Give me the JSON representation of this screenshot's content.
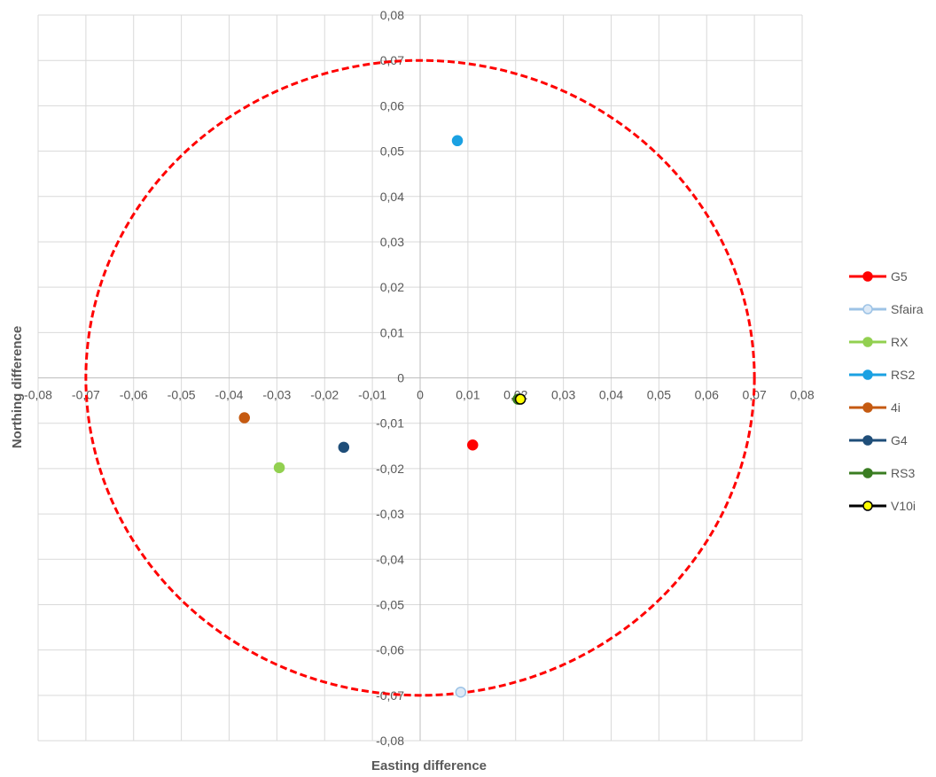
{
  "chart_data": {
    "type": "scatter",
    "title": "",
    "xlabel": "Easting difference",
    "ylabel": "Northing difference",
    "xlim": [
      -0.08,
      0.08
    ],
    "ylim": [
      -0.08,
      0.08
    ],
    "tick_step": 0.01,
    "x_tick_labels": [
      "-0,08",
      "-0,07",
      "-0,06",
      "-0,05",
      "-0,04",
      "-0,03",
      "-0,02",
      "-0,01",
      "0",
      "0,01",
      "0,02",
      "0,03",
      "0,04",
      "0,05",
      "0,06",
      "0,07",
      "0,08"
    ],
    "y_tick_labels": [
      "0,08",
      "0,07",
      "0,06",
      "0,05",
      "0,04",
      "0,03",
      "0,02",
      "0,01",
      "0",
      "-0,01",
      "-0,02",
      "-0,03",
      "-0,04",
      "-0,05",
      "-0,06",
      "-0,07",
      "-0,08"
    ],
    "grid": true,
    "legend_position": "right",
    "tolerance_circle": {
      "radius": 0.07,
      "color": "#ff0000",
      "style": "dashed"
    },
    "series": [
      {
        "name": "G5",
        "color": "#ff0000",
        "marker_fill": "#ff0000",
        "marker_stroke": "#ff0000",
        "points": [
          [
            0.011,
            -0.0148
          ]
        ]
      },
      {
        "name": "Sfaira",
        "color": "#9dc3e6",
        "marker_fill": "#dce9f6",
        "marker_stroke": "#9dc3e6",
        "points": [
          [
            0.0085,
            -0.0693
          ]
        ]
      },
      {
        "name": "RX",
        "color": "#92d050",
        "marker_fill": "#92d050",
        "marker_stroke": "#92d050",
        "points": [
          [
            -0.0295,
            -0.0198
          ]
        ]
      },
      {
        "name": "RS2",
        "color": "#1ba1e2",
        "marker_fill": "#1ba1e2",
        "marker_stroke": "#1ba1e2",
        "points": [
          [
            0.0078,
            0.0523
          ]
        ]
      },
      {
        "name": "4i",
        "color": "#c55a11",
        "marker_fill": "#c55a11",
        "marker_stroke": "#c55a11",
        "points": [
          [
            -0.0368,
            -0.0088
          ]
        ]
      },
      {
        "name": "G4",
        "color": "#1f4e79",
        "marker_fill": "#1f4e79",
        "marker_stroke": "#1f4e79",
        "points": [
          [
            -0.016,
            -0.0153
          ]
        ]
      },
      {
        "name": "RS3",
        "color": "#3a7d22",
        "marker_fill": "#3a7d22",
        "marker_stroke": "#3a7d22",
        "points": [
          [
            0.0205,
            -0.0047
          ]
        ]
      },
      {
        "name": "V10i",
        "color": "#000000",
        "marker_fill": "#ffff00",
        "marker_stroke": "#000000",
        "points": [
          [
            0.021,
            -0.0047
          ]
        ]
      }
    ]
  }
}
